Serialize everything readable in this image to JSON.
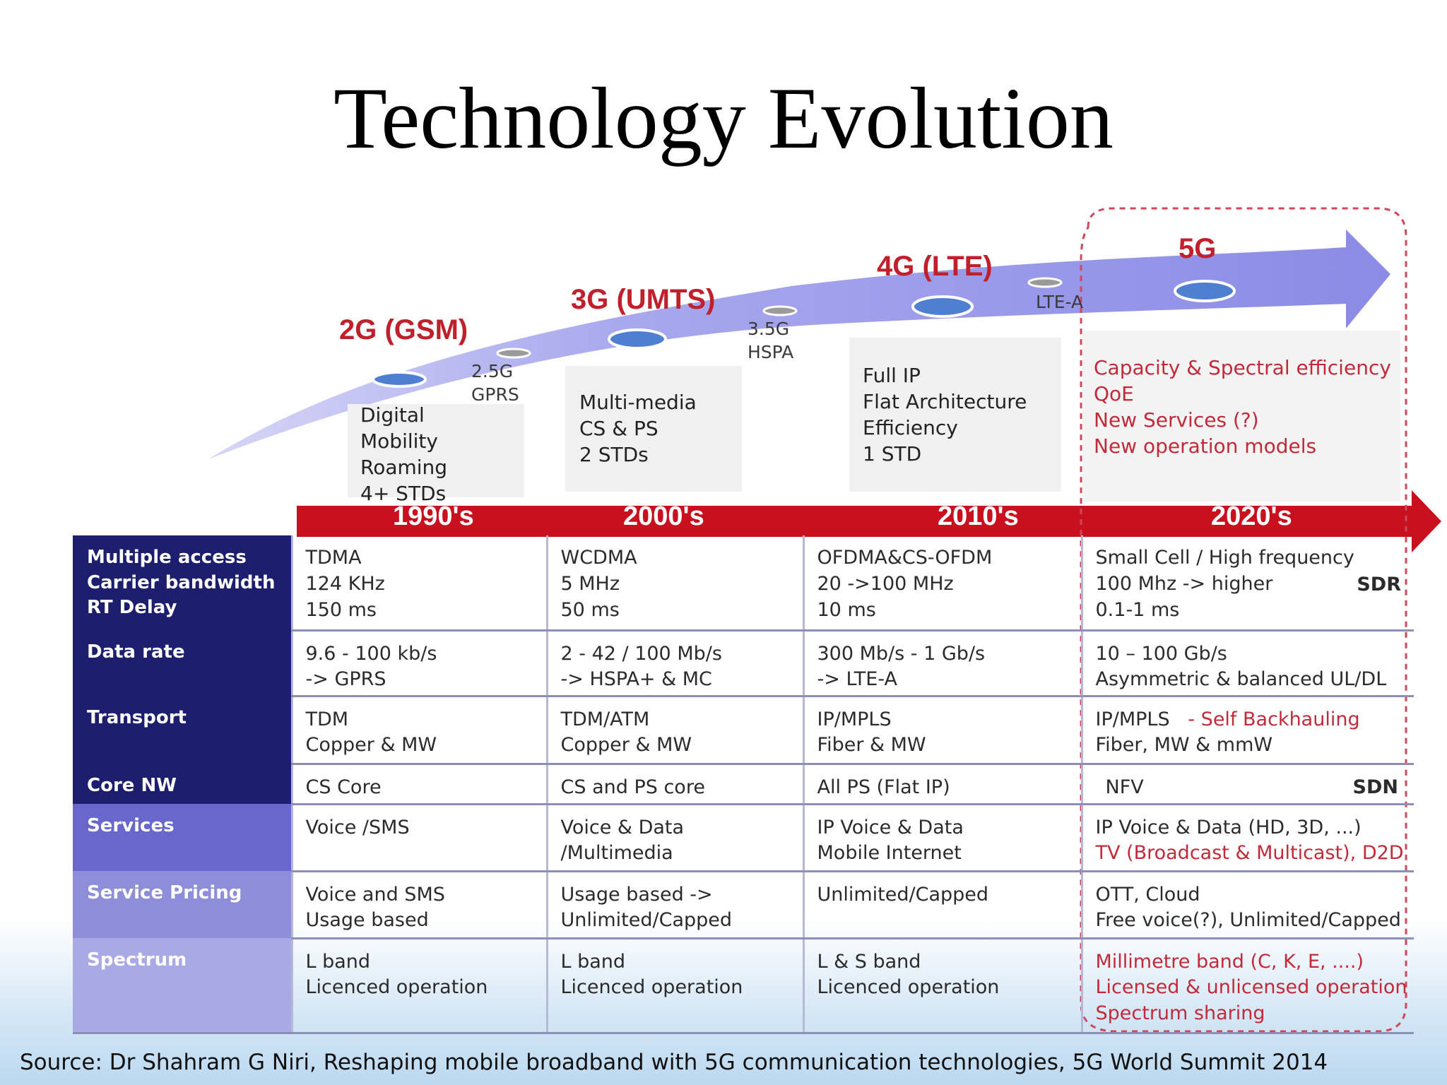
{
  "title": "Technology Evolution",
  "generations": [
    {
      "label": "2G (GSM)"
    },
    {
      "label": "3G (UMTS)"
    },
    {
      "label": "4G (LTE)"
    },
    {
      "label": "5G"
    }
  ],
  "sub_generations": [
    {
      "lines": [
        "2.5G",
        "GPRS"
      ]
    },
    {
      "lines": [
        "3.5G",
        "HSPA"
      ]
    },
    {
      "lines": [
        "LTE-A"
      ]
    }
  ],
  "features": [
    {
      "lines": [
        "Digital",
        "Mobility",
        "Roaming",
        "4+ STDs"
      ]
    },
    {
      "lines": [
        "Multi-media",
        "CS & PS",
        "2 STDs"
      ]
    },
    {
      "lines": [
        "Full IP",
        "Flat Architecture",
        "Efficiency",
        "1 STD"
      ]
    },
    {
      "lines": [
        "Capacity & Spectral efficiency",
        "QoE",
        "New Services (?)",
        "New operation models"
      ]
    }
  ],
  "decades": [
    "1990's",
    "2000's",
    "2010's",
    "2020's"
  ],
  "rows": [
    {
      "header": [
        "Multiple access",
        "Carrier bandwidth",
        "RT Delay"
      ],
      "cells": [
        [
          "TDMA",
          "124 KHz",
          "150 ms"
        ],
        [
          "WCDMA",
          "5 MHz",
          "50 ms"
        ],
        [
          "OFDMA&CS-OFDM",
          "20 ->100 MHz",
          "10 ms"
        ],
        [
          "Small Cell / High frequency",
          "100 Mhz -> higher",
          "0.1-1 ms"
        ]
      ],
      "corner": "SDR"
    },
    {
      "header": [
        "Data rate"
      ],
      "cells": [
        [
          "9.6 - 100 kb/s",
          "-> GPRS"
        ],
        [
          "2 -  42 / 100 Mb/s",
          "-> HSPA+ & MC"
        ],
        [
          "300 Mb/s - 1 Gb/s",
          "-> LTE-A"
        ],
        [
          "10 – 100 Gb/s",
          "Asymmetric & balanced UL/DL"
        ]
      ]
    },
    {
      "header": [
        "Transport"
      ],
      "cells": [
        [
          "TDM",
          "Copper & MW"
        ],
        [
          "TDM/ATM",
          "Copper & MW"
        ],
        [
          "IP/MPLS",
          "Fiber & MW"
        ],
        [
          "IP/MPLS",
          "Fiber, MW & mmW"
        ]
      ],
      "extra": "- Self Backhauling"
    },
    {
      "header": [
        "Core NW"
      ],
      "cells": [
        [
          "CS Core"
        ],
        [
          "CS and PS core"
        ],
        [
          "All PS (Flat IP)"
        ],
        [
          "NFV"
        ]
      ],
      "corner": "SDN"
    },
    {
      "header": [
        "Services"
      ],
      "cells": [
        [
          "Voice /SMS"
        ],
        [
          "Voice & Data",
          "/Multimedia"
        ],
        [
          "IP Voice & Data",
          "Mobile Internet"
        ],
        [
          "IP Voice & Data (HD, 3D, ...)",
          "TV (Broadcast & Multicast), D2D"
        ]
      ]
    },
    {
      "header": [
        "Service Pricing"
      ],
      "cells": [
        [
          "Voice and SMS",
          "Usage based"
        ],
        [
          "Usage based ->",
          "Unlimited/Capped"
        ],
        [
          "Unlimited/Capped"
        ],
        [
          "OTT, Cloud",
          "Free voice(?), Unlimited/Capped"
        ]
      ]
    },
    {
      "header": [
        "Spectrum"
      ],
      "cells": [
        [
          "L band",
          "Licenced operation"
        ],
        [
          "L band",
          "Licenced operation"
        ],
        [
          "L & S band",
          "Licenced operation"
        ],
        [
          "Millimetre band (C, K, E, ....)",
          "Licensed & unlicensed operation",
          "Spectrum sharing"
        ]
      ]
    }
  ],
  "source": "Source: Dr Shahram G Niri, Reshaping mobile broadband with 5G communication technologies, 5G World Summit 2014",
  "colors": {
    "accent_red": "#c0202c",
    "arrow_purple": "#8f8fe8",
    "header_dark": "#1d1f6e",
    "header_mid": "#6666cc",
    "header_light": "#a8a8e4",
    "dashed_border": "#d0465a"
  }
}
